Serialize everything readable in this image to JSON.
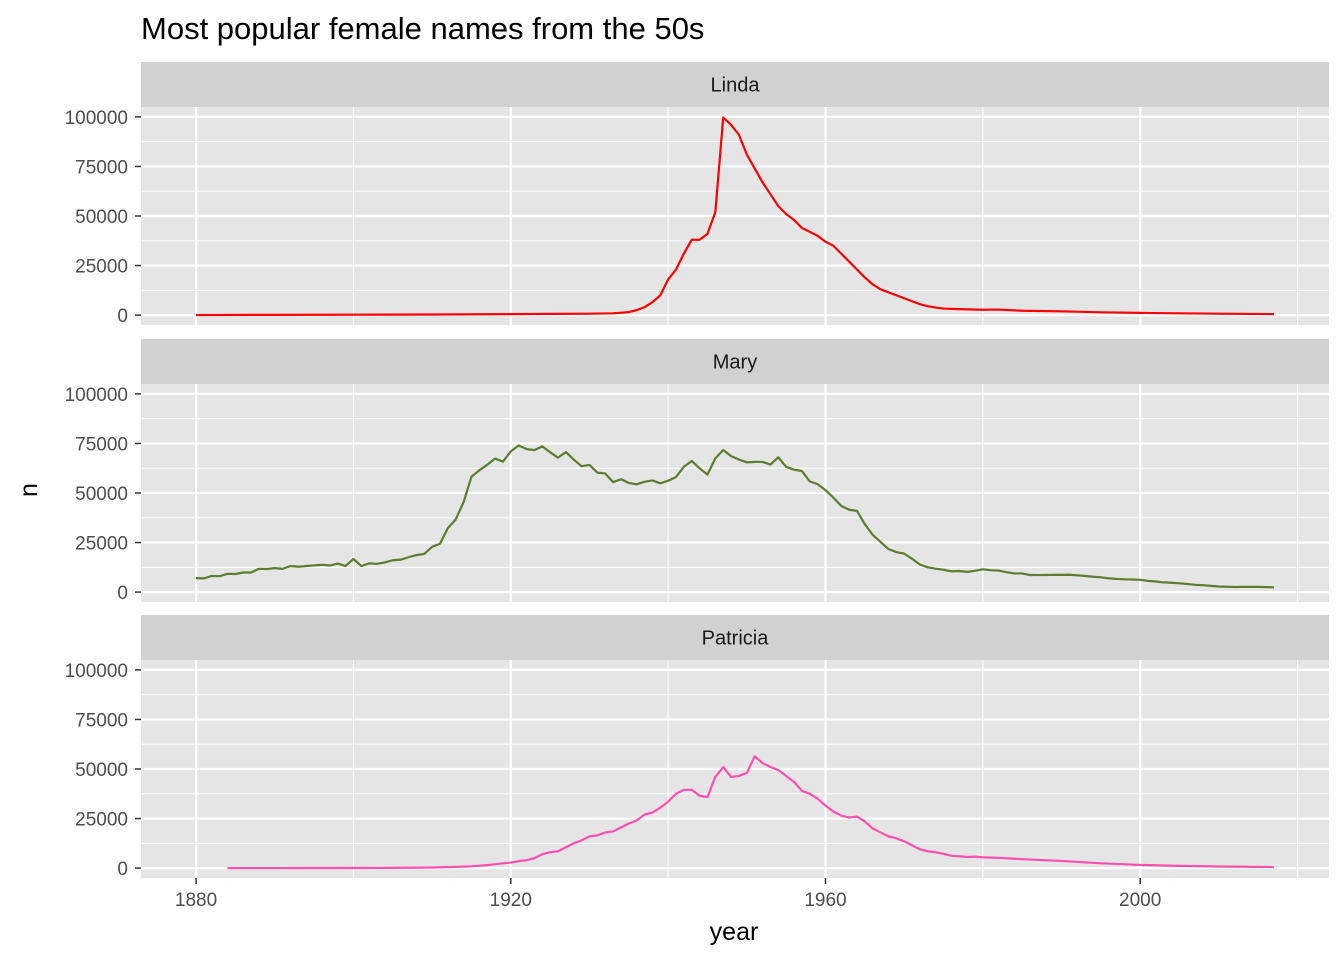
{
  "chart_data": {
    "type": "line",
    "title": "Most popular female names from the 50s",
    "xlabel": "year",
    "ylabel": "n",
    "xlim": [
      1873,
      2024
    ],
    "ylim": [
      -5000,
      105000
    ],
    "x_ticks": [
      1880,
      1920,
      1960,
      2000
    ],
    "x_tick_labels": [
      "1880",
      "1920",
      "1960",
      "2000"
    ],
    "y_ticks": [
      0,
      25000,
      50000,
      75000,
      100000
    ],
    "y_tick_labels": [
      "0",
      "25000",
      "50000",
      "75000",
      "100000"
    ],
    "grid": true,
    "facet": "vertical",
    "panel_background": "#e5e5e5",
    "strip_background": "#d1d1d1",
    "grid_color": "#ffffff",
    "series": [
      {
        "name": "Linda",
        "color": "#ff0000",
        "points": [
          [
            1880,
            27
          ],
          [
            1890,
            120
          ],
          [
            1900,
            200
          ],
          [
            1910,
            300
          ],
          [
            1920,
            480
          ],
          [
            1925,
            600
          ],
          [
            1930,
            700
          ],
          [
            1933,
            900
          ],
          [
            1935,
            1500
          ],
          [
            1936,
            2500
          ],
          [
            1937,
            4000
          ],
          [
            1938,
            6500
          ],
          [
            1939,
            10000
          ],
          [
            1940,
            18000
          ],
          [
            1941,
            23000
          ],
          [
            1942,
            31000
          ],
          [
            1943,
            38000
          ],
          [
            1944,
            38000
          ],
          [
            1945,
            41000
          ],
          [
            1946,
            52000
          ],
          [
            1947,
            99700
          ],
          [
            1948,
            96000
          ],
          [
            1949,
            91000
          ],
          [
            1950,
            81000
          ],
          [
            1951,
            74000
          ],
          [
            1952,
            67000
          ],
          [
            1953,
            61000
          ],
          [
            1954,
            55000
          ],
          [
            1955,
            51000
          ],
          [
            1956,
            48000
          ],
          [
            1957,
            44000
          ],
          [
            1958,
            42000
          ],
          [
            1959,
            40000
          ],
          [
            1960,
            37000
          ],
          [
            1961,
            35000
          ],
          [
            1962,
            31000
          ],
          [
            1963,
            27000
          ],
          [
            1964,
            23000
          ],
          [
            1965,
            19000
          ],
          [
            1966,
            15500
          ],
          [
            1967,
            13000
          ],
          [
            1968,
            11500
          ],
          [
            1969,
            10000
          ],
          [
            1970,
            8500
          ],
          [
            1971,
            7000
          ],
          [
            1972,
            5500
          ],
          [
            1973,
            4500
          ],
          [
            1974,
            3800
          ],
          [
            1975,
            3300
          ],
          [
            1977,
            3000
          ],
          [
            1980,
            2700
          ],
          [
            1982,
            2800
          ],
          [
            1985,
            2200
          ],
          [
            1990,
            1900
          ],
          [
            1995,
            1400
          ],
          [
            2000,
            1100
          ],
          [
            2005,
            900
          ],
          [
            2010,
            700
          ],
          [
            2017,
            500
          ]
        ]
      },
      {
        "name": "Mary",
        "color": "#5a7d2e",
        "points": [
          [
            1880,
            7065
          ],
          [
            1881,
            6919
          ],
          [
            1882,
            8148
          ],
          [
            1883,
            8012
          ],
          [
            1884,
            9217
          ],
          [
            1885,
            9128
          ],
          [
            1886,
            9889
          ],
          [
            1887,
            9888
          ],
          [
            1888,
            11754
          ],
          [
            1889,
            11648
          ],
          [
            1890,
            12078
          ],
          [
            1891,
            11703
          ],
          [
            1892,
            13172
          ],
          [
            1893,
            12784
          ],
          [
            1894,
            13151
          ],
          [
            1895,
            13446
          ],
          [
            1896,
            13811
          ],
          [
            1897,
            13413
          ],
          [
            1898,
            14406
          ],
          [
            1899,
            13172
          ],
          [
            1900,
            16707
          ],
          [
            1901,
            13136
          ],
          [
            1902,
            14486
          ],
          [
            1903,
            14275
          ],
          [
            1904,
            14961
          ],
          [
            1905,
            16067
          ],
          [
            1906,
            16370
          ],
          [
            1907,
            17580
          ],
          [
            1908,
            18665
          ],
          [
            1909,
            19259
          ],
          [
            1910,
            22848
          ],
          [
            1911,
            24390
          ],
          [
            1912,
            32304
          ],
          [
            1913,
            36641
          ],
          [
            1914,
            45345
          ],
          [
            1915,
            58187
          ],
          [
            1916,
            61438
          ],
          [
            1917,
            64281
          ],
          [
            1918,
            67366
          ],
          [
            1919,
            65838
          ],
          [
            1920,
            70975
          ],
          [
            1921,
            73982
          ],
          [
            1922,
            72175
          ],
          [
            1923,
            71634
          ],
          [
            1924,
            73536
          ],
          [
            1925,
            70594
          ],
          [
            1926,
            67830
          ],
          [
            1927,
            70639
          ],
          [
            1928,
            66867
          ],
          [
            1929,
            63511
          ],
          [
            1930,
            64142
          ],
          [
            1931,
            60295
          ],
          [
            1932,
            59872
          ],
          [
            1933,
            55507
          ],
          [
            1934,
            56924
          ],
          [
            1935,
            55065
          ],
          [
            1936,
            54373
          ],
          [
            1937,
            55642
          ],
          [
            1938,
            56321
          ],
          [
            1939,
            54904
          ],
          [
            1940,
            56200
          ],
          [
            1941,
            58040
          ],
          [
            1942,
            63246
          ],
          [
            1943,
            66168
          ],
          [
            1944,
            62465
          ],
          [
            1945,
            59288
          ],
          [
            1946,
            67468
          ],
          [
            1947,
            71679
          ],
          [
            1948,
            68596
          ],
          [
            1949,
            66882
          ],
          [
            1950,
            65469
          ],
          [
            1951,
            65704
          ],
          [
            1952,
            65684
          ],
          [
            1953,
            64361
          ],
          [
            1954,
            68021
          ],
          [
            1955,
            63201
          ],
          [
            1956,
            61753
          ],
          [
            1957,
            61094
          ],
          [
            1958,
            55857
          ],
          [
            1959,
            54474
          ],
          [
            1960,
            51474
          ],
          [
            1961,
            47661
          ],
          [
            1962,
            43490
          ],
          [
            1963,
            41555
          ],
          [
            1964,
            40985
          ],
          [
            1965,
            34272
          ],
          [
            1966,
            28881
          ],
          [
            1967,
            25307
          ],
          [
            1968,
            21727
          ],
          [
            1969,
            20202
          ],
          [
            1970,
            19406
          ],
          [
            1971,
            16807
          ],
          [
            1972,
            13926
          ],
          [
            1973,
            12503
          ],
          [
            1974,
            11792
          ],
          [
            1975,
            11274
          ],
          [
            1976,
            10466
          ],
          [
            1977,
            10650
          ],
          [
            1978,
            10198
          ],
          [
            1979,
            10727
          ],
          [
            1980,
            11482
          ],
          [
            1981,
            11045
          ],
          [
            1982,
            10852
          ],
          [
            1983,
            10025
          ],
          [
            1984,
            9422
          ],
          [
            1985,
            9409
          ],
          [
            1986,
            8608
          ],
          [
            1987,
            8589
          ],
          [
            1988,
            8628
          ],
          [
            1989,
            8716
          ],
          [
            1990,
            8671
          ],
          [
            1991,
            8749
          ],
          [
            1992,
            8472
          ],
          [
            1993,
            8109
          ],
          [
            1994,
            7745
          ],
          [
            1995,
            7442
          ],
          [
            1996,
            6946
          ],
          [
            1997,
            6643
          ],
          [
            1998,
            6450
          ],
          [
            1999,
            6366
          ],
          [
            2000,
            6187
          ],
          [
            2001,
            5668
          ],
          [
            2002,
            5327
          ],
          [
            2003,
            4887
          ],
          [
            2004,
            4714
          ],
          [
            2005,
            4429
          ],
          [
            2006,
            4082
          ],
          [
            2007,
            3669
          ],
          [
            2008,
            3479
          ],
          [
            2009,
            3134
          ],
          [
            2010,
            2829
          ],
          [
            2011,
            2683
          ],
          [
            2012,
            2557
          ],
          [
            2013,
            2644
          ],
          [
            2014,
            2629
          ],
          [
            2015,
            2632
          ],
          [
            2016,
            2507
          ],
          [
            2017,
            2381
          ]
        ]
      },
      {
        "name": "Patricia",
        "color": "#ff4fb0",
        "points": [
          [
            1884,
            5
          ],
          [
            1890,
            20
          ],
          [
            1900,
            50
          ],
          [
            1905,
            100
          ],
          [
            1910,
            300
          ],
          [
            1913,
            600
          ],
          [
            1915,
            900
          ],
          [
            1917,
            1500
          ],
          [
            1919,
            2400
          ],
          [
            1920,
            2800
          ],
          [
            1921,
            3500
          ],
          [
            1922,
            4000
          ],
          [
            1923,
            5000
          ],
          [
            1924,
            7000
          ],
          [
            1925,
            8000
          ],
          [
            1926,
            8500
          ],
          [
            1927,
            10500
          ],
          [
            1928,
            12500
          ],
          [
            1929,
            14000
          ],
          [
            1930,
            16000
          ],
          [
            1931,
            16500
          ],
          [
            1932,
            18000
          ],
          [
            1933,
            18500
          ],
          [
            1934,
            20500
          ],
          [
            1935,
            22500
          ],
          [
            1936,
            24000
          ],
          [
            1937,
            27000
          ],
          [
            1938,
            28000
          ],
          [
            1939,
            30500
          ],
          [
            1940,
            33500
          ],
          [
            1941,
            37500
          ],
          [
            1942,
            39500
          ],
          [
            1943,
            39500
          ],
          [
            1944,
            36500
          ],
          [
            1945,
            35800
          ],
          [
            1946,
            46000
          ],
          [
            1947,
            51000
          ],
          [
            1948,
            46000
          ],
          [
            1949,
            46500
          ],
          [
            1950,
            48000
          ],
          [
            1951,
            56400
          ],
          [
            1952,
            53000
          ],
          [
            1953,
            51000
          ],
          [
            1954,
            49500
          ],
          [
            1955,
            46500
          ],
          [
            1956,
            43500
          ],
          [
            1957,
            39000
          ],
          [
            1958,
            37500
          ],
          [
            1959,
            35000
          ],
          [
            1960,
            31500
          ],
          [
            1961,
            28500
          ],
          [
            1962,
            26500
          ],
          [
            1963,
            25500
          ],
          [
            1964,
            26000
          ],
          [
            1965,
            23500
          ],
          [
            1966,
            20000
          ],
          [
            1967,
            18000
          ],
          [
            1968,
            16000
          ],
          [
            1969,
            15000
          ],
          [
            1970,
            13500
          ],
          [
            1971,
            11500
          ],
          [
            1972,
            9500
          ],
          [
            1973,
            8500
          ],
          [
            1974,
            8000
          ],
          [
            1975,
            7200
          ],
          [
            1976,
            6200
          ],
          [
            1977,
            6000
          ],
          [
            1978,
            5600
          ],
          [
            1979,
            5800
          ],
          [
            1980,
            5400
          ],
          [
            1982,
            5200
          ],
          [
            1985,
            4500
          ],
          [
            1990,
            3600
          ],
          [
            1995,
            2400
          ],
          [
            2000,
            1600
          ],
          [
            2005,
            1100
          ],
          [
            2010,
            800
          ],
          [
            2017,
            500
          ]
        ]
      }
    ]
  }
}
